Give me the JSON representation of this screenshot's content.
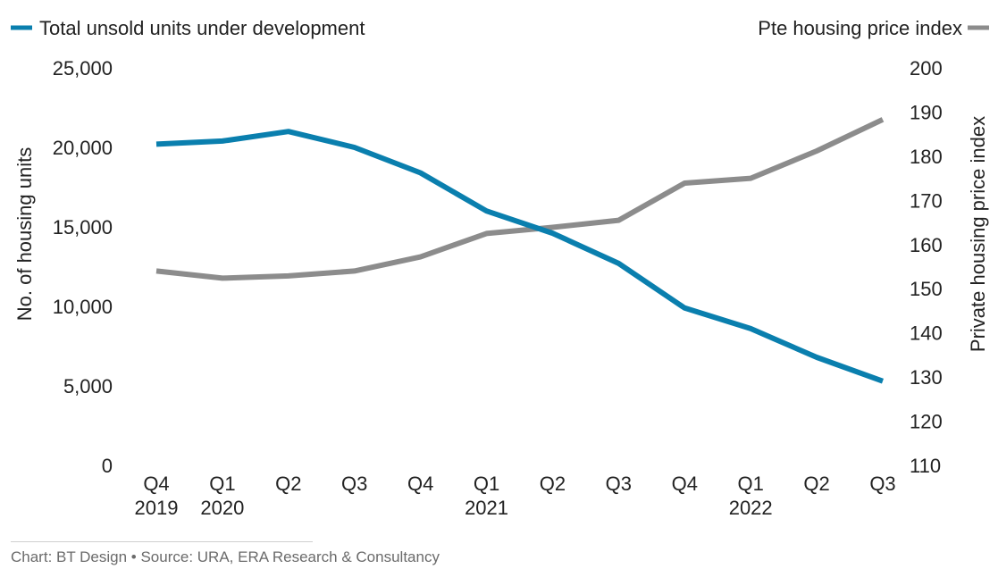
{
  "chart_data": {
    "type": "line",
    "categories": [
      [
        "Q4",
        "2019"
      ],
      [
        "Q1",
        "2020"
      ],
      [
        "Q2",
        ""
      ],
      [
        "Q3",
        ""
      ],
      [
        "Q4",
        ""
      ],
      [
        "Q1",
        "2021"
      ],
      [
        "Q2",
        ""
      ],
      [
        "Q3",
        ""
      ],
      [
        "Q4",
        ""
      ],
      [
        "Q1",
        "2022"
      ],
      [
        "Q2",
        ""
      ],
      [
        "Q3",
        ""
      ]
    ],
    "series": [
      {
        "name": "Total unsold units under development",
        "axis": "left",
        "color": "#0a7fae",
        "values": [
          20200,
          20400,
          21000,
          20000,
          18400,
          16000,
          14600,
          12700,
          9900,
          8600,
          6800,
          5300
        ]
      },
      {
        "name": "Pte housing price index",
        "axis": "right",
        "color": "#8c8c8c",
        "values": [
          154.0,
          152.4,
          152.9,
          154.0,
          157.2,
          162.5,
          163.9,
          165.5,
          173.9,
          175.0,
          181.2,
          188.3
        ]
      }
    ],
    "y_left": {
      "label": "No. of housing units",
      "range": [
        0,
        25000
      ],
      "ticks": [
        "0",
        "5,000",
        "10,000",
        "15,000",
        "20,000",
        "25,000"
      ]
    },
    "y_right": {
      "label": "Private housing price index",
      "range": [
        110,
        200
      ],
      "ticks": [
        "110",
        "120",
        "130",
        "140",
        "150",
        "160",
        "170",
        "180",
        "190",
        "200"
      ]
    },
    "grid": false,
    "legend_placement": "top"
  },
  "footer": {
    "source": "Chart: BT Design • Source: URA, ERA Research & Consultancy"
  }
}
